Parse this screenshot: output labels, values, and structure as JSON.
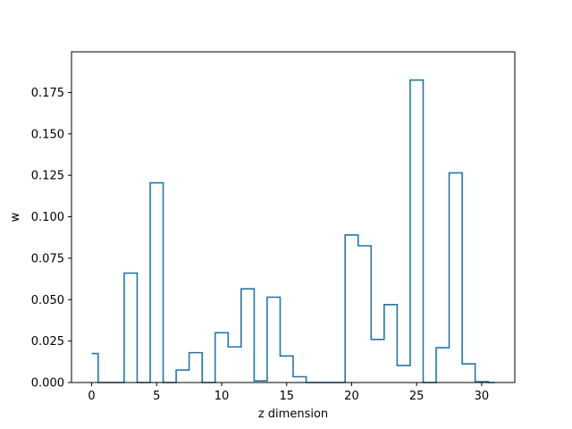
{
  "chart_data": {
    "type": "line",
    "style": "step-histogram",
    "title": "",
    "xlabel": "z dimension",
    "ylabel": "w",
    "xlim": [
      -1.55,
      32.55
    ],
    "ylim": [
      0,
      0.1995
    ],
    "grid": false,
    "legend": "none",
    "color": "#1f77b4",
    "x_ticks": [
      0,
      5,
      10,
      15,
      20,
      25,
      30
    ],
    "x_tick_labels": [
      "0",
      "5",
      "10",
      "15",
      "20",
      "25",
      "30"
    ],
    "y_ticks": [
      0,
      0.025,
      0.05,
      0.075,
      0.1,
      0.125,
      0.15,
      0.175
    ],
    "y_tick_labels": [
      "0.000",
      "0.025",
      "0.050",
      "0.075",
      "0.100",
      "0.125",
      "0.150",
      "0.175"
    ],
    "x": [
      0,
      1,
      2,
      3,
      4,
      5,
      6,
      7,
      8,
      9,
      10,
      11,
      12,
      13,
      14,
      15,
      16,
      17,
      18,
      19,
      20,
      21,
      22,
      23,
      24,
      25,
      26,
      27,
      28,
      29,
      30,
      31
    ],
    "values": [
      0.0175,
      0.0,
      0.0,
      0.066,
      0.0,
      0.1205,
      0.0,
      0.0075,
      0.018,
      0.0,
      0.03,
      0.0215,
      0.0565,
      0.001,
      0.0515,
      0.016,
      0.0035,
      0.0,
      0.0,
      0.0,
      0.089,
      0.0825,
      0.026,
      0.047,
      0.0103,
      0.1825,
      0.0,
      0.021,
      0.1265,
      0.0113,
      0.0005,
      0.0
    ]
  }
}
